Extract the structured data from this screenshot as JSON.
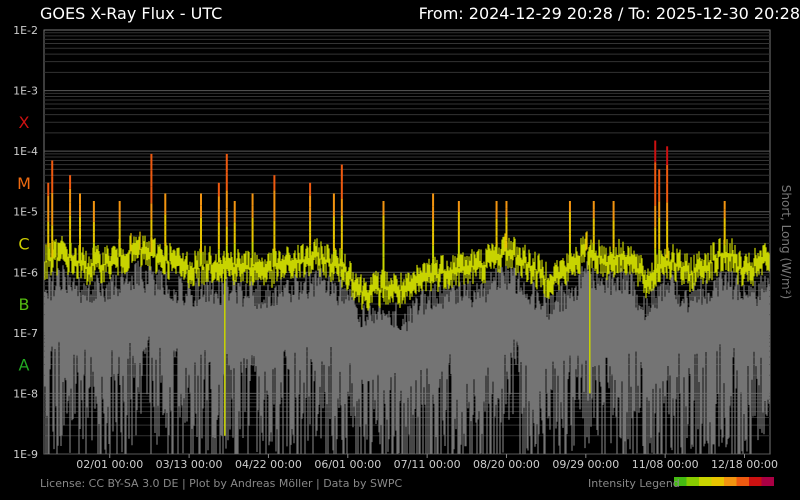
{
  "header": {
    "title": "GOES X-Ray Flux - UTC",
    "range": "From: 2024-12-29 20:28  /  To: 2025-12-30 20:28"
  },
  "footer": {
    "license": "License: CC BY-SA 3.0 DE | Plot by Andreas Möller | Data by SWPC",
    "legend_label": "Intensity Legend"
  },
  "chart_data": {
    "type": "line",
    "title": "GOES X-Ray Flux - UTC",
    "ylabel": "Short, Long (W/m²)",
    "yscale": "log",
    "ylim": [
      1e-09,
      0.01
    ],
    "xlim": [
      "2024-12-29 20:28",
      "2025-12-30 20:28"
    ],
    "y_tick_labels": [
      "1E-2",
      "1E-3",
      "1E-4",
      "1E-5",
      "1E-6",
      "1E-7",
      "1E-8",
      "1E-9"
    ],
    "x_tick_labels": [
      "02/01 00:00",
      "03/13 00:00",
      "04/22 00:00",
      "06/01 00:00",
      "07/11 00:00",
      "08/20 00:00",
      "09/29 00:00",
      "11/08 00:00",
      "12/18 00:00"
    ],
    "flare_classes": [
      {
        "label": "X",
        "color": "#cc1111",
        "center": 0.0003
      },
      {
        "label": "M",
        "color": "#ee6a10",
        "center": 3e-05
      },
      {
        "label": "C",
        "color": "#cccc00",
        "center": 3e-06
      },
      {
        "label": "B",
        "color": "#55bb11",
        "center": 3e-07
      },
      {
        "label": "A",
        "color": "#22aa22",
        "center": 3e-08
      }
    ],
    "series": [
      {
        "name": "Long",
        "color": "#c8d400"
      },
      {
        "name": "Short",
        "color": "#777777"
      }
    ],
    "long_baseline": [
      [
        "2024-12-29",
        1.4e-06
      ],
      [
        "2025-01-08",
        2.2e-06
      ],
      [
        "2025-01-20",
        1.3e-06
      ],
      [
        "2025-02-01",
        1.6e-06
      ],
      [
        "2025-02-15",
        2.5e-06
      ],
      [
        "2025-03-01",
        1.8e-06
      ],
      [
        "2025-03-13",
        1.2e-06
      ],
      [
        "2025-03-25",
        1.5e-06
      ],
      [
        "2025-04-08",
        1.3e-06
      ],
      [
        "2025-04-22",
        1.2e-06
      ],
      [
        "2025-05-05",
        1.5e-06
      ],
      [
        "2025-05-18",
        1.9e-06
      ],
      [
        "2025-06-01",
        1.1e-06
      ],
      [
        "2025-06-08",
        5e-07
      ],
      [
        "2025-06-20",
        6e-07
      ],
      [
        "2025-07-01",
        5e-07
      ],
      [
        "2025-07-11",
        1e-06
      ],
      [
        "2025-07-25",
        1.2e-06
      ],
      [
        "2025-08-08",
        1.4e-06
      ],
      [
        "2025-08-20",
        2.5e-06
      ],
      [
        "2025-08-30",
        1.5e-06
      ],
      [
        "2025-09-10",
        8e-07
      ],
      [
        "2025-09-20",
        1.2e-06
      ],
      [
        "2025-09-29",
        2.5e-06
      ],
      [
        "2025-10-10",
        1.6e-06
      ],
      [
        "2025-10-20",
        2e-06
      ],
      [
        "2025-10-30",
        7e-07
      ],
      [
        "2025-11-08",
        1.8e-06
      ],
      [
        "2025-11-20",
        1e-06
      ],
      [
        "2025-12-01",
        1.6e-06
      ],
      [
        "2025-12-10",
        2.2e-06
      ],
      [
        "2025-12-18",
        1e-06
      ],
      [
        "2025-12-30",
        1.8e-06
      ]
    ],
    "flares": [
      [
        "2025-01-01",
        3e-05
      ],
      [
        "2025-01-03",
        7e-05
      ],
      [
        "2025-01-12",
        4e-05
      ],
      [
        "2025-01-17",
        2e-05
      ],
      [
        "2025-01-24",
        1.5e-05
      ],
      [
        "2025-02-06",
        1.5e-05
      ],
      [
        "2025-02-22",
        9e-05
      ],
      [
        "2025-03-01",
        2e-05
      ],
      [
        "2025-03-19",
        2e-05
      ],
      [
        "2025-03-28",
        3e-05
      ],
      [
        "2025-04-01",
        9e-05
      ],
      [
        "2025-04-05",
        1.5e-05
      ],
      [
        "2025-04-14",
        2e-05
      ],
      [
        "2025-04-25",
        4e-05
      ],
      [
        "2025-05-13",
        3e-05
      ],
      [
        "2025-05-25",
        2e-05
      ],
      [
        "2025-05-29",
        6e-05
      ],
      [
        "2025-06-19",
        1.5e-05
      ],
      [
        "2025-07-14",
        2e-05
      ],
      [
        "2025-07-27",
        1.5e-05
      ],
      [
        "2025-08-15",
        1.5e-05
      ],
      [
        "2025-08-20",
        1.5e-05
      ],
      [
        "2025-09-21",
        1.5e-05
      ],
      [
        "2025-10-03",
        1.5e-05
      ],
      [
        "2025-10-13",
        1.5e-05
      ],
      [
        "2025-11-03",
        0.00015
      ],
      [
        "2025-11-05",
        5e-05
      ],
      [
        "2025-11-09",
        0.00012
      ],
      [
        "2025-12-08",
        1.5e-05
      ]
    ],
    "dropouts": [
      [
        "2025-03-31",
        2e-09
      ],
      [
        "2025-09-10",
        7e-07
      ],
      [
        "2025-10-01",
        1e-08
      ]
    ]
  }
}
